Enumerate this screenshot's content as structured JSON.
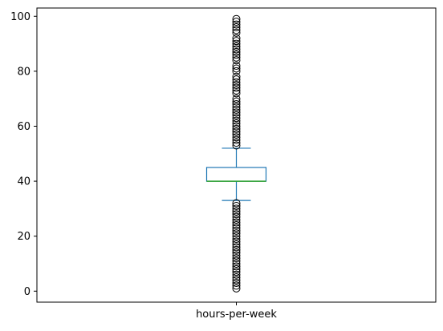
{
  "chart_data": {
    "type": "box",
    "title": "",
    "xlabel": "",
    "ylabel": "",
    "ylim": [
      -4,
      103
    ],
    "yticks": [
      0,
      20,
      40,
      60,
      80,
      100
    ],
    "categories": [
      "hours-per-week"
    ],
    "grid": false,
    "box": {
      "q1": 40,
      "median": 40,
      "q3": 45,
      "whisker_low": 33,
      "whisker_high": 52,
      "outliers_low": [
        1,
        2,
        3,
        4,
        5,
        6,
        7,
        8,
        9,
        10,
        11,
        12,
        13,
        14,
        15,
        16,
        17,
        18,
        19,
        20,
        21,
        22,
        23,
        24,
        25,
        26,
        27,
        28,
        29,
        30,
        31,
        32
      ],
      "outliers_high": [
        53,
        54,
        55,
        56,
        57,
        58,
        59,
        60,
        61,
        62,
        63,
        64,
        65,
        66,
        67,
        68,
        69,
        70,
        72,
        73,
        74,
        75,
        76,
        77,
        78,
        80,
        81,
        82,
        84,
        85,
        86,
        87,
        88,
        89,
        90,
        91,
        92,
        94,
        95,
        96,
        97,
        98,
        99
      ]
    },
    "colors": {
      "box": "#1f77b4",
      "median": "#2ca02c",
      "outlier": "#000000"
    }
  }
}
